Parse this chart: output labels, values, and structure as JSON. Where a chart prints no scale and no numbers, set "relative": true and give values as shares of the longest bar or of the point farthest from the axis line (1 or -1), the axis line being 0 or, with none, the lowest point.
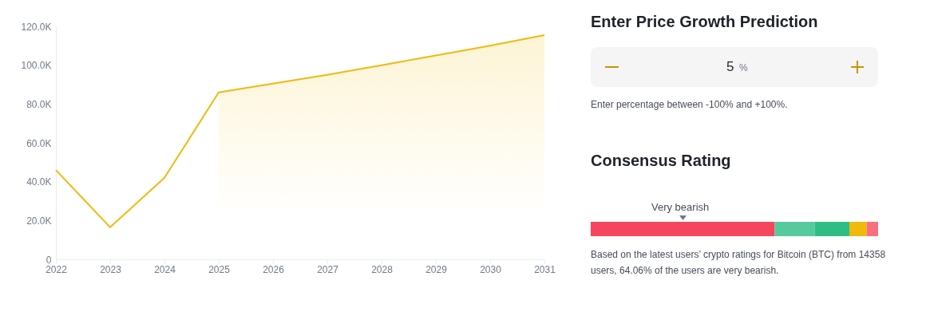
{
  "chart_data": [
    {
      "type": "line",
      "x": [
        2022,
        2023,
        2024,
        2025,
        2026,
        2027,
        2028,
        2029,
        2030,
        2031
      ],
      "xlim": [
        2022,
        2031
      ],
      "xticks": [
        2022,
        2023,
        2024,
        2025,
        2026,
        2027,
        2028,
        2029,
        2030,
        2031
      ],
      "ylim": [
        0,
        120000
      ],
      "yticks": [
        {
          "value": 0,
          "label": "0"
        },
        {
          "value": 20000,
          "label": "20.0K"
        },
        {
          "value": 40000,
          "label": "40.0K"
        },
        {
          "value": 60000,
          "label": "60.0K"
        },
        {
          "value": 80000,
          "label": "80.0K"
        },
        {
          "value": 100000,
          "label": "100.0K"
        },
        {
          "value": 120000,
          "label": "120.0K"
        }
      ],
      "grid": false,
      "series": [
        {
          "type": "line",
          "color": "#f0b90b",
          "values": [
            46000,
            16500,
            42000,
            86000,
            90500,
            95000,
            100000,
            105000,
            110000,
            115500
          ]
        },
        {
          "type": "area",
          "color": "#fdf3d0",
          "x": [
            2025,
            2026,
            2027,
            2028,
            2029,
            2030,
            2031
          ],
          "values": [
            86000,
            90500,
            95000,
            100000,
            105000,
            110000,
            115500
          ]
        }
      ]
    },
    {
      "type": "other",
      "title": "Enter Price Growth Prediction",
      "annotations": [
        "5",
        "%",
        "Enter percentage between -100% and +100%."
      ]
    },
    {
      "type": "bar",
      "title": "Consensus Rating",
      "orientation": "horizontal",
      "stacked": true,
      "relative": true,
      "categories": [
        null
      ],
      "series": [
        {
          "color": "#f6465d",
          "values": [
            0.64
          ]
        },
        {
          "color": "#56c99d",
          "values": [
            0.14
          ]
        },
        {
          "color": "#2ebd85",
          "values": [
            0.12
          ]
        },
        {
          "color": "#f0b90b",
          "values": [
            0.06
          ]
        },
        {
          "color": "#f8707f",
          "values": [
            0.04
          ]
        }
      ],
      "annotations": [
        "Very bearish",
        "Based on the latest users’ crypto ratings for Bitcoin (BTC) from 14358 users, 64.06% of the users are very bearish."
      ]
    }
  ]
}
